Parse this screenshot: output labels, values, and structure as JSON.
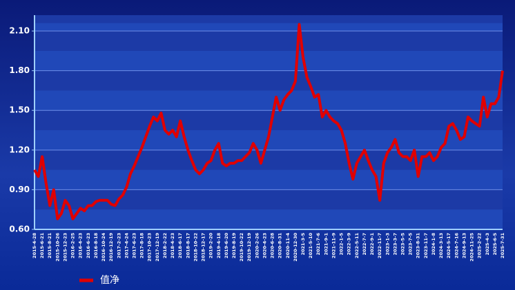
{
  "chart_data": {
    "type": "line",
    "categories": [
      "2015-4-28",
      null,
      "2015-6-21",
      null,
      "2015-8-21",
      null,
      "2015-10-26",
      null,
      "2015-12-23",
      null,
      "2016-2-25",
      null,
      "2016-4-23",
      null,
      "2016-6-23",
      null,
      "2016-8-18",
      null,
      "2016-10-24",
      null,
      "2016-12-19",
      null,
      "2017-2-23",
      null,
      "2017-4-24",
      null,
      "2017-6-23",
      null,
      "2017-8-18",
      null,
      "2017-10-23",
      null,
      "2017-12-19",
      null,
      "2018-2-22",
      null,
      "2018-4-23",
      null,
      "2018-6-17",
      null,
      "2018-8-17",
      null,
      "2018-10-22",
      null,
      "2018-12-17",
      null,
      "2019-2-20",
      null,
      "2019-4-18",
      null,
      "2019-6-20",
      null,
      "2019-8-19",
      null,
      "2019-10-22",
      null,
      "2019-12-19",
      null,
      "2020-2-26",
      null,
      "2020-4-23",
      null,
      "2020-6-28",
      null,
      "2020-8-31",
      null,
      "2020-11-4",
      null,
      "2020-12-30",
      null,
      "2021-3-5",
      null,
      "2021-5-10",
      null,
      "2021-7-6",
      null,
      "2021-9-1",
      null,
      "2021-11-9",
      null,
      "2022-1-5",
      null,
      "2022-3-9",
      null,
      "2022-5-11",
      null,
      "2022-7-7",
      null,
      "2022-9-1",
      null,
      "2022-11-7",
      null,
      "2023-1-3",
      null,
      "2023-3-7",
      null,
      "2023-5-5",
      null,
      "2023-7-5",
      null,
      "2023-8-31",
      null,
      "2023-11-7",
      null,
      "2024-1-8",
      null,
      "2024-3-13",
      null,
      "2024-5-17",
      null,
      "2024-7-16",
      null,
      "2024-9-13",
      null,
      "2024-11-25",
      null,
      "2025-2-22",
      null,
      "2025-4-3",
      null,
      "2025-6-5",
      null,
      "2025-7-31"
    ],
    "series": [
      {
        "name": "值净",
        "color": "#e00000",
        "values": [
          1.05,
          1.0,
          1.15,
          0.95,
          0.78,
          0.9,
          0.68,
          0.72,
          0.82,
          0.78,
          0.68,
          0.72,
          0.76,
          0.74,
          0.78,
          0.78,
          0.81,
          0.82,
          0.82,
          0.82,
          0.79,
          0.78,
          0.83,
          0.86,
          0.92,
          1.02,
          1.08,
          1.15,
          1.22,
          1.3,
          1.38,
          1.45,
          1.42,
          1.48,
          1.35,
          1.32,
          1.35,
          1.3,
          1.42,
          1.3,
          1.2,
          1.12,
          1.05,
          1.02,
          1.05,
          1.1,
          1.12,
          1.2,
          1.25,
          1.1,
          1.08,
          1.1,
          1.1,
          1.12,
          1.12,
          1.15,
          1.18,
          1.25,
          1.2,
          1.1,
          1.2,
          1.3,
          1.45,
          1.6,
          1.5,
          1.58,
          1.62,
          1.65,
          1.72,
          2.15,
          1.9,
          1.75,
          1.68,
          1.6,
          1.62,
          1.45,
          1.5,
          1.45,
          1.42,
          1.4,
          1.35,
          1.25,
          1.1,
          0.98,
          1.1,
          1.15,
          1.2,
          1.12,
          1.05,
          1.0,
          0.82,
          1.1,
          1.18,
          1.22,
          1.28,
          1.18,
          1.15,
          1.15,
          1.12,
          1.2,
          1.0,
          1.15,
          1.15,
          1.18,
          1.12,
          1.15,
          1.22,
          1.25,
          1.38,
          1.4,
          1.35,
          1.28,
          1.3,
          1.45,
          1.42,
          1.4,
          1.38,
          1.6,
          1.45,
          1.55,
          1.55,
          1.6,
          1.8
        ]
      }
    ],
    "ylim": [
      0.6,
      2.22
    ],
    "yticks": [
      {
        "value": 0.6,
        "label": "0.60"
      },
      {
        "value": 0.9,
        "label": "0.90"
      },
      {
        "value": 1.2,
        "label": "1.20"
      },
      {
        "value": 1.5,
        "label": "1.50"
      },
      {
        "value": 1.8,
        "label": "1.80"
      },
      {
        "value": 2.1,
        "label": "2.10"
      }
    ],
    "grid": true,
    "legend": "bottom-left"
  }
}
